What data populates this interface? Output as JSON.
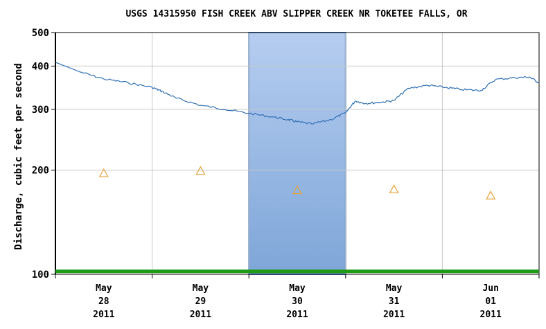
{
  "chart_data": {
    "type": "line",
    "title": "USGS 14315950 FISH CREEK ABV SLIPPER CREEK NR TOKETEE FALLS, OR",
    "ylabel": "Discharge, cubic feet per second",
    "xlabel": "",
    "yscale": "log",
    "ylim": [
      100,
      500
    ],
    "yticks": [
      100,
      200,
      300,
      400,
      500
    ],
    "xlim": [
      0,
      5
    ],
    "x_ticks": [
      {
        "x": 0.5,
        "month": "May",
        "day": "28",
        "year": "2011"
      },
      {
        "x": 1.5,
        "month": "May",
        "day": "29",
        "year": "2011"
      },
      {
        "x": 2.5,
        "month": "May",
        "day": "30",
        "year": "2011"
      },
      {
        "x": 3.5,
        "month": "May",
        "day": "31",
        "year": "2011"
      },
      {
        "x": 4.5,
        "month": "Jun",
        "day": "01",
        "year": "2011"
      }
    ],
    "highlight_range": [
      2.0,
      3.0
    ],
    "grid": true,
    "series": [
      {
        "kind": "line",
        "color": "#2f6fb5",
        "points": [
          [
            0.0,
            410
          ],
          [
            0.25,
            385
          ],
          [
            0.5,
            367
          ],
          [
            0.75,
            358
          ],
          [
            1.0,
            347
          ],
          [
            1.1,
            338
          ],
          [
            1.25,
            323
          ],
          [
            1.5,
            308
          ],
          [
            1.75,
            300
          ],
          [
            2.0,
            292
          ],
          [
            2.25,
            285
          ],
          [
            2.4,
            280
          ],
          [
            2.5,
            276
          ],
          [
            2.65,
            272
          ],
          [
            2.85,
            280
          ],
          [
            3.0,
            293
          ],
          [
            3.1,
            317
          ],
          [
            3.2,
            312
          ],
          [
            3.35,
            314
          ],
          [
            3.5,
            318
          ],
          [
            3.65,
            345
          ],
          [
            3.85,
            352
          ],
          [
            4.0,
            348
          ],
          [
            4.2,
            342
          ],
          [
            4.4,
            340
          ],
          [
            4.55,
            366
          ],
          [
            4.75,
            370
          ],
          [
            4.9,
            372
          ],
          [
            5.0,
            358
          ]
        ]
      },
      {
        "kind": "markers",
        "marker": "triangle",
        "color": "#e6a13a",
        "points": [
          [
            0.5,
            196
          ],
          [
            1.5,
            199
          ],
          [
            2.5,
            175
          ],
          [
            3.5,
            176
          ],
          [
            4.5,
            169
          ]
        ]
      }
    ],
    "baseline": {
      "value": 102,
      "color": "#1f9a16"
    },
    "colors": {
      "highlight_top": "#b6cdf0",
      "highlight_bottom": "#7ea6d8",
      "highlight_edge": "#5a8cc8",
      "grid": "#c8c8c8"
    }
  }
}
